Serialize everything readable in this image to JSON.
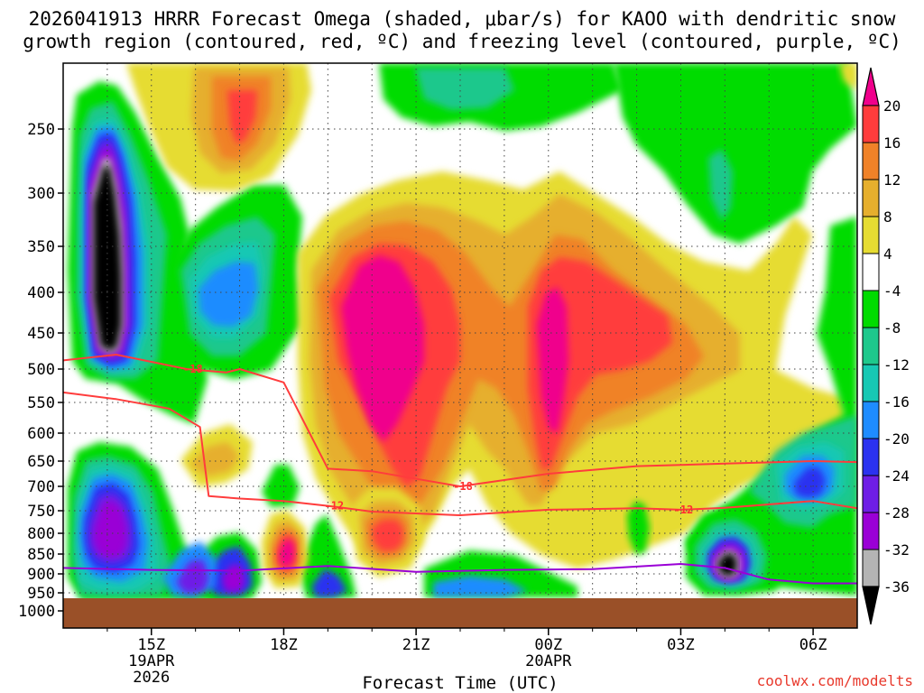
{
  "title_line1": "2026041913 HRRR Forecast Omega (shaded, μbar/s) for KAOO with dendritic snow",
  "title_line2": "growth region (contoured, red, ºC) and freezing level (contoured, purple, ºC)",
  "credit": "coolwx.com/modelts",
  "chart_data": {
    "type": "heatmap",
    "variable": "Omega",
    "units": "μbar/s",
    "xlabel": "Forecast Time (UTC)",
    "ylabel": "",
    "x_ticks": [
      {
        "hour": 15,
        "label": "15Z",
        "sub1": "19APR",
        "sub2": "2026"
      },
      {
        "hour": 18,
        "label": "18Z"
      },
      {
        "hour": 21,
        "label": "21Z"
      },
      {
        "hour": 24,
        "label": "00Z",
        "sub1": "20APR"
      },
      {
        "hour": 27,
        "label": "03Z"
      },
      {
        "hour": 30,
        "label": "06Z"
      }
    ],
    "xlim": [
      13,
      31
    ],
    "y_ticks": [
      250,
      300,
      350,
      400,
      450,
      500,
      550,
      600,
      650,
      700,
      750,
      800,
      850,
      900,
      950,
      1000
    ],
    "ylim_hPa": [
      200,
      1025
    ],
    "colorbar": {
      "levels": [
        -36,
        -32,
        -28,
        -24,
        -20,
        -16,
        -12,
        -8,
        -4,
        4,
        8,
        12,
        16,
        20
      ],
      "colors": [
        "#000000",
        "#b4b4b4",
        "#9a00d6",
        "#6e1ee6",
        "#2b32f0",
        "#1e8cff",
        "#17c8b4",
        "#1ec88c",
        "#00dc00",
        "#ffffff",
        "#e6dc32",
        "#e6af2d",
        "#f08228",
        "#ff3c3c",
        "#f0008c"
      ]
    },
    "features": [
      {
        "name": "strong-rising-core",
        "x": 14.2,
        "p": 385,
        "peak_omega": -40
      },
      {
        "name": "strong-sinking-core",
        "x": 20.5,
        "p": 420,
        "peak_omega": 20
      },
      {
        "name": "sinking-core-2",
        "x": 23.8,
        "p": 430,
        "peak_omega": 17
      },
      {
        "name": "rising-core-low",
        "x": 28.1,
        "p": 880,
        "peak_omega": -34
      }
    ],
    "contours": [
      {
        "name": "dendritic-minus-18",
        "color": "#ff3c3c",
        "label": "-18",
        "x": [
          13.0,
          14.2,
          15.8,
          16.7,
          17.0,
          18.0,
          19.0,
          20.0,
          22.0,
          24.0,
          26.0,
          28.0,
          30.0,
          31.0
        ],
        "p": [
          488,
          480,
          500,
          505,
          500,
          520,
          665,
          670,
          700,
          675,
          660,
          655,
          650,
          652
        ]
      },
      {
        "name": "dendritic-minus-12",
        "color": "#ff3c3c",
        "label": "-12",
        "x": [
          13.0,
          14.2,
          15.4,
          16.1,
          16.3,
          17.0,
          18.0,
          19.0,
          20.0,
          22.0,
          24.0,
          26.0,
          27.0,
          28.0,
          30.0,
          31.0
        ],
        "p": [
          535,
          545,
          560,
          590,
          720,
          725,
          730,
          740,
          752,
          760,
          748,
          745,
          748,
          744,
          730,
          745
        ]
      },
      {
        "name": "freezing-level",
        "color": "#9a00d6",
        "label": "",
        "x": [
          13.0,
          15.0,
          17.0,
          19.0,
          21.0,
          23.0,
          25.0,
          27.0,
          28.0,
          29.0,
          30.0,
          31.0
        ],
        "p": [
          885,
          890,
          892,
          880,
          895,
          890,
          888,
          875,
          885,
          915,
          925,
          925
        ]
      }
    ],
    "ground_level_hPa": 965
  }
}
